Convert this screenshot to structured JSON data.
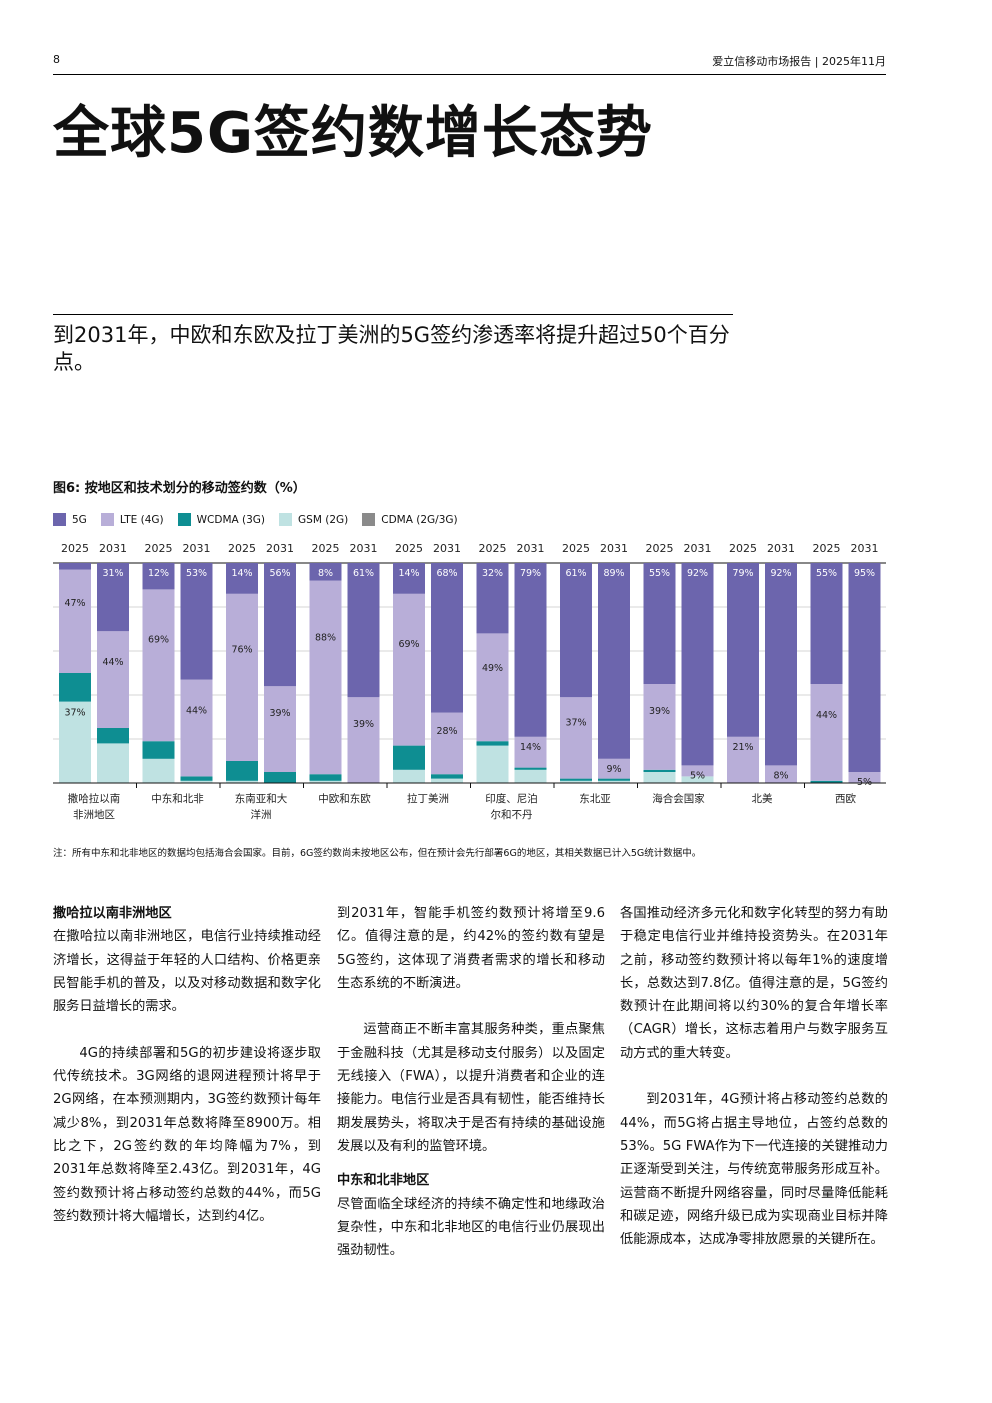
{
  "header": {
    "page_number": "8",
    "report": "爱立信移动市场报告 | 2025年11月"
  },
  "title": "全球5G签约数增长态势",
  "subtitle": "到2031年，中欧和东欧及拉丁美洲的5G签约渗透率将提升超过50个百分点。",
  "figure_title": "图6: 按地区和技术划分的移动签约数（%）",
  "footnote": "注：所有中东和北非地区的数据均包括海合会国家。目前，6G签约数尚未按地区公布，但在预计会先行部署6G的地区，其相关数据已计入5G统计数据中。",
  "colors": {
    "5G": "#6c65ad",
    "LTE (4G)": "#b8aed8",
    "WCDMA (3G)": "#0e8e92",
    "GSM (2G)": "#bfe2e2",
    "CDMA (2G/3G)": "#8a8a8a"
  },
  "chart_data": {
    "type": "bar",
    "stacked": true,
    "title": "图6: 按地区和技术划分的移动签约数（%）",
    "ylabel": "%",
    "ylim": [
      0,
      100
    ],
    "legend": [
      "5G",
      "LTE (4G)",
      "WCDMA (3G)",
      "GSM (2G)",
      "CDMA (2G/3G)"
    ],
    "regions": [
      {
        "name": "撒哈拉以南非洲地区",
        "years": [
          {
            "year": "2025",
            "values": {
              "5G": 3,
              "LTE (4G)": 47,
              "WCDMA (3G)": 13,
              "GSM (2G)": 37,
              "CDMA (2G/3G)": 0
            },
            "labels": {
              "LTE (4G)": "47%",
              "GSM (2G)": "37%"
            }
          },
          {
            "year": "2031",
            "values": {
              "5G": 31,
              "LTE (4G)": 44,
              "WCDMA (3G)": 7,
              "GSM (2G)": 18,
              "CDMA (2G/3G)": 0
            },
            "labels": {
              "5G": "31%",
              "LTE (4G)": "44%"
            }
          }
        ]
      },
      {
        "name": "中东和北非",
        "years": [
          {
            "year": "2025",
            "values": {
              "5G": 12,
              "LTE (4G)": 69,
              "WCDMA (3G)": 8,
              "GSM (2G)": 11,
              "CDMA (2G/3G)": 0
            },
            "labels": {
              "5G": "12%",
              "LTE (4G)": "69%"
            }
          },
          {
            "year": "2031",
            "values": {
              "5G": 53,
              "LTE (4G)": 44,
              "WCDMA (3G)": 2,
              "GSM (2G)": 1,
              "CDMA (2G/3G)": 0
            },
            "labels": {
              "5G": "53%",
              "LTE (4G)": "44%"
            }
          }
        ]
      },
      {
        "name": "东南亚和大洋洲",
        "years": [
          {
            "year": "2025",
            "values": {
              "5G": 14,
              "LTE (4G)": 76,
              "WCDMA (3G)": 9,
              "GSM (2G)": 1,
              "CDMA (2G/3G)": 0
            },
            "labels": {
              "5G": "14%",
              "LTE (4G)": "76%"
            }
          },
          {
            "year": "2031",
            "values": {
              "5G": 56,
              "LTE (4G)": 39,
              "WCDMA (3G)": 5,
              "GSM (2G)": 0,
              "CDMA (2G/3G)": 0
            },
            "labels": {
              "5G": "56%",
              "LTE (4G)": "39%"
            }
          }
        ]
      },
      {
        "name": "中欧和东欧",
        "years": [
          {
            "year": "2025",
            "values": {
              "5G": 8,
              "LTE (4G)": 88,
              "WCDMA (3G)": 3,
              "GSM (2G)": 1,
              "CDMA (2G/3G)": 0
            },
            "labels": {
              "5G": "8%",
              "LTE (4G)": "88%"
            }
          },
          {
            "year": "2031",
            "values": {
              "5G": 61,
              "LTE (4G)": 39,
              "WCDMA (3G)": 0,
              "GSM (2G)": 0,
              "CDMA (2G/3G)": 0
            },
            "labels": {
              "5G": "61%",
              "LTE (4G)": "39%"
            }
          }
        ]
      },
      {
        "name": "拉丁美洲",
        "years": [
          {
            "year": "2025",
            "values": {
              "5G": 14,
              "LTE (4G)": 69,
              "WCDMA (3G)": 11,
              "GSM (2G)": 6,
              "CDMA (2G/3G)": 0
            },
            "labels": {
              "5G": "14%",
              "LTE (4G)": "69%"
            }
          },
          {
            "year": "2031",
            "values": {
              "5G": 68,
              "LTE (4G)": 28,
              "WCDMA (3G)": 2,
              "GSM (2G)": 2,
              "CDMA (2G/3G)": 0
            },
            "labels": {
              "5G": "68%",
              "LTE (4G)": "28%"
            }
          }
        ]
      },
      {
        "name": "印度、尼泊尔和不丹",
        "years": [
          {
            "year": "2025",
            "values": {
              "5G": 32,
              "LTE (4G)": 49,
              "WCDMA (3G)": 2,
              "GSM (2G)": 17,
              "CDMA (2G/3G)": 0
            },
            "labels": {
              "5G": "32%",
              "LTE (4G)": "49%"
            }
          },
          {
            "year": "2031",
            "values": {
              "5G": 79,
              "LTE (4G)": 14,
              "WCDMA (3G)": 1,
              "GSM (2G)": 6,
              "CDMA (2G/3G)": 0
            },
            "labels": {
              "5G": "79%",
              "LTE (4G)": "14%"
            }
          }
        ]
      },
      {
        "name": "东北亚",
        "years": [
          {
            "year": "2025",
            "values": {
              "5G": 61,
              "LTE (4G)": 37,
              "WCDMA (3G)": 1,
              "GSM (2G)": 1,
              "CDMA (2G/3G)": 0
            },
            "labels": {
              "5G": "61%",
              "LTE (4G)": "37%"
            }
          },
          {
            "year": "2031",
            "values": {
              "5G": 89,
              "LTE (4G)": 9,
              "WCDMA (3G)": 1,
              "GSM (2G)": 1,
              "CDMA (2G/3G)": 0
            },
            "labels": {
              "5G": "89%",
              "LTE (4G)": "9%"
            }
          }
        ]
      },
      {
        "name": "海合会国家",
        "years": [
          {
            "year": "2025",
            "values": {
              "5G": 55,
              "LTE (4G)": 39,
              "WCDMA (3G)": 1,
              "GSM (2G)": 5,
              "CDMA (2G/3G)": 0
            },
            "labels": {
              "5G": "55%",
              "LTE (4G)": "39%"
            }
          },
          {
            "year": "2031",
            "values": {
              "5G": 92,
              "LTE (4G)": 5,
              "WCDMA (3G)": 0,
              "GSM (2G)": 3,
              "CDMA (2G/3G)": 0
            },
            "labels": {
              "5G": "92%",
              "LTE (4G)": "5%"
            }
          }
        ]
      },
      {
        "name": "北美",
        "years": [
          {
            "year": "2025",
            "values": {
              "5G": 79,
              "LTE (4G)": 21,
              "WCDMA (3G)": 0,
              "GSM (2G)": 0,
              "CDMA (2G/3G)": 0
            },
            "labels": {
              "5G": "79%",
              "LTE (4G)": "21%"
            }
          },
          {
            "year": "2031",
            "values": {
              "5G": 92,
              "LTE (4G)": 8,
              "WCDMA (3G)": 0,
              "GSM (2G)": 0,
              "CDMA (2G/3G)": 0
            },
            "labels": {
              "5G": "92%",
              "LTE (4G)": "8%"
            }
          }
        ]
      },
      {
        "name": "西欧",
        "years": [
          {
            "year": "2025",
            "values": {
              "5G": 55,
              "LTE (4G)": 44,
              "WCDMA (3G)": 1,
              "GSM (2G)": 0,
              "CDMA (2G/3G)": 0
            },
            "labels": {
              "5G": "55%",
              "LTE (4G)": "44%"
            }
          },
          {
            "year": "2031",
            "values": {
              "5G": 95,
              "LTE (4G)": 5,
              "WCDMA (3G)": 0,
              "GSM (2G)": 0,
              "CDMA (2G/3G)": 0
            },
            "labels": {
              "5G": "95%",
              "LTE (4G)": "5%"
            }
          }
        ]
      }
    ]
  },
  "body": {
    "col1": {
      "heading": "撒哈拉以南非洲地区",
      "p1": "在撒哈拉以南非洲地区，电信行业持续推动经济增长，这得益于年轻的人口结构、价格更亲民智能手机的普及，以及对移动数据和数字化服务日益增长的需求。",
      "p2": "4G的持续部署和5G的初步建设将逐步取代传统技术。3G网络的退网进程预计将早于2G网络，在本预测期内，3G签约数预计每年减少8%，到2031年总数将降至8900万。相比之下，2G签约数的年均降幅为7%，到2031年总数将降至2.43亿。到2031年，4G签约数预计将占移动签约总数的44%，而5G签约数预计将大幅增长，达到约4亿。"
    },
    "col2": {
      "p1": "到2031年，智能手机签约数预计将增至9.6亿。值得注意的是，约42%的签约数有望是5G签约，这体现了消费者需求的增长和移动生态系统的不断演进。",
      "p2": "运营商正不断丰富其服务种类，重点聚焦于金融科技（尤其是移动支付服务）以及固定无线接入（FWA），以提升消费者和企业的连接能力。电信行业是否具有韧性，能否维持长期发展势头，将取决于是否有持续的基础设施发展以及有利的监管环境。",
      "heading": "中东和北非地区",
      "p3": "尽管面临全球经济的持续不确定性和地缘政治复杂性，中东和北非地区的电信行业仍展现出强劲韧性。"
    },
    "col3": {
      "p1": "各国推动经济多元化和数字化转型的努力有助于稳定电信行业并维持投资势头。在2031年之前，移动签约数预计将以每年1%的速度增长，总数达到7.8亿。值得注意的是，5G签约数预计在此期间将以约30%的复合年增长率（CAGR）增长，这标志着用户与数字服务互动方式的重大转变。",
      "p2": "到2031年，4G预计将占移动签约总数的44%，而5G将占据主导地位，占签约总数的53%。5G FWA作为下一代连接的关键推动力正逐渐受到关注，与传统宽带服务形成互补。运营商不断提升网络容量，同时尽量降低能耗和碳足迹，网络升级已成为实现商业目标并降低能源成本，达成净零排放愿景的关键所在。"
    }
  }
}
